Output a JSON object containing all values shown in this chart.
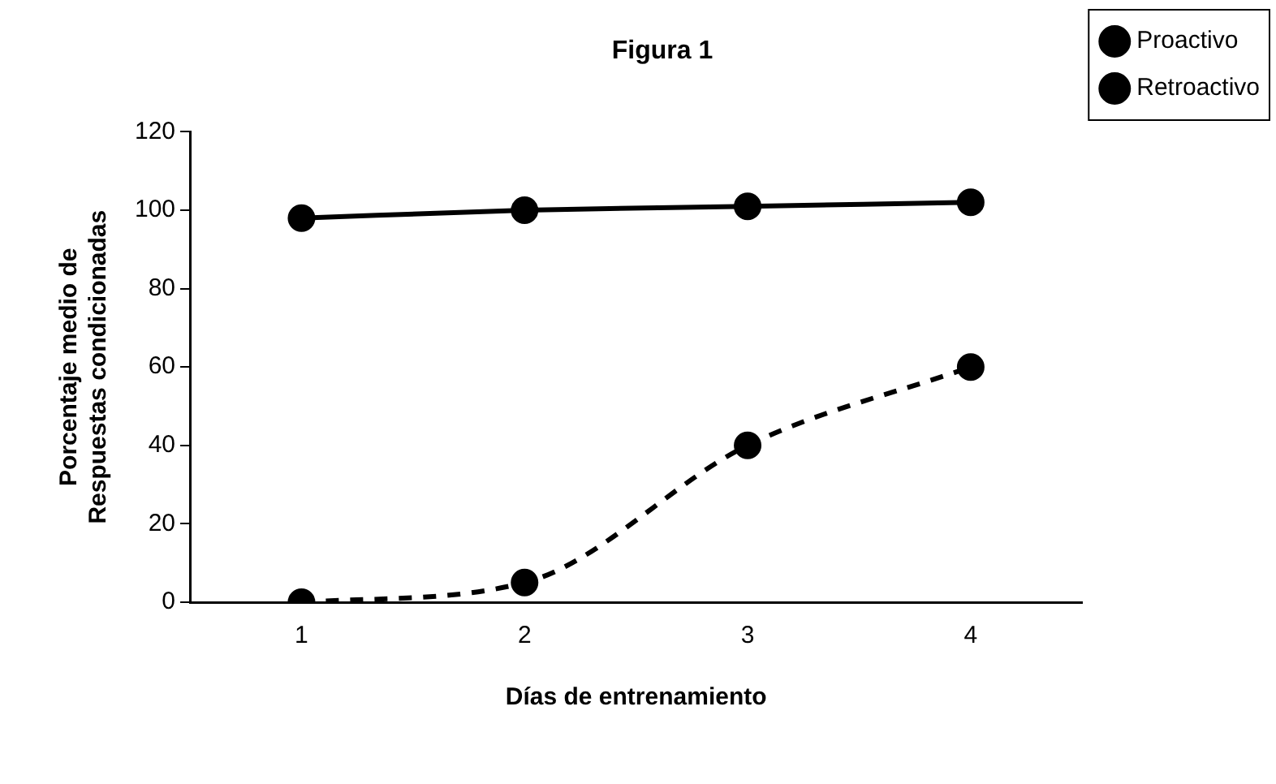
{
  "chart_data": {
    "type": "line",
    "title": "Figura 1",
    "xlabel": "Días de entrenamiento",
    "ylabel": "Porcentaje medio de\nRespuestas condicionadas",
    "categories": [
      "1",
      "2",
      "3",
      "4"
    ],
    "series": [
      {
        "name": "Proactivo",
        "color": "#000000",
        "values": [
          98,
          100,
          101,
          102
        ],
        "line_style": "solid"
      },
      {
        "name": "Retroactivo",
        "color": "#000000",
        "values": [
          0,
          5,
          40,
          60
        ],
        "line_style": "dashed"
      }
    ],
    "ylim": [
      0,
      120
    ],
    "yticks": [
      0,
      20,
      40,
      60,
      80,
      100,
      120
    ],
    "grid": false,
    "legend": "top right",
    "marker": "circle"
  }
}
